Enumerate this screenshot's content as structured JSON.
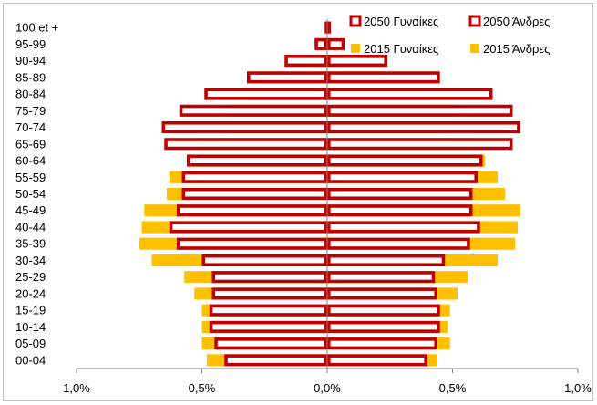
{
  "chart_data": {
    "type": "bar",
    "orientation": "horizontal",
    "chart_style": "population-pyramid",
    "categories": [
      "100 et +",
      "95-99",
      "90-94",
      "85-89",
      "80-84",
      "75-79",
      "70-74",
      "65-69",
      "60-64",
      "55-59",
      "50-54",
      "45-49",
      "40-44",
      "35-39",
      "30-34",
      "25-29",
      "20-24",
      "15-19",
      "10-14",
      "05-09",
      "00-04"
    ],
    "series": [
      {
        "name": "2015 Γυναίκες",
        "side": "left",
        "style": "filled",
        "color": "#FFC000",
        "values": [
          0.002,
          0.004,
          0.01,
          0.04,
          0.3,
          0.39,
          0.42,
          0.52,
          0.55,
          0.63,
          0.64,
          0.73,
          0.74,
          0.75,
          0.7,
          0.57,
          0.53,
          0.5,
          0.5,
          0.5,
          0.48
        ]
      },
      {
        "name": "2015 Άνδρες",
        "side": "right",
        "style": "filled",
        "color": "#FFC000",
        "values": [
          0.002,
          0.004,
          0.07,
          0.23,
          0.4,
          0.51,
          0.48,
          0.59,
          0.63,
          0.68,
          0.71,
          0.77,
          0.76,
          0.75,
          0.68,
          0.56,
          0.52,
          0.49,
          0.48,
          0.49,
          0.44
        ]
      },
      {
        "name": "2050 Γυναίκες",
        "side": "left",
        "style": "outline",
        "color": "#C00000",
        "values": [
          0.01,
          0.05,
          0.17,
          0.32,
          0.49,
          0.59,
          0.66,
          0.65,
          0.56,
          0.58,
          0.58,
          0.6,
          0.63,
          0.6,
          0.5,
          0.46,
          0.46,
          0.47,
          0.47,
          0.45,
          0.41
        ]
      },
      {
        "name": "2050 Άνδρες",
        "side": "right",
        "style": "outline",
        "color": "#C00000",
        "values": [
          0.01,
          0.07,
          0.24,
          0.45,
          0.66,
          0.74,
          0.77,
          0.74,
          0.62,
          0.6,
          0.58,
          0.58,
          0.61,
          0.57,
          0.47,
          0.43,
          0.44,
          0.45,
          0.45,
          0.44,
          0.4
        ]
      }
    ],
    "xticks": [
      "1,0%",
      "0,5%",
      "0,0%",
      "0,5%",
      "1,0%"
    ],
    "xlim": [
      -1.0,
      1.0
    ],
    "x_unit": "%",
    "legend": {
      "position": "top-right",
      "entries": [
        "2050 Γυναίκες",
        "2050 Άνδρες",
        "2015 Γυναίκες",
        "2015 Άνδρες"
      ]
    },
    "grid": false
  }
}
